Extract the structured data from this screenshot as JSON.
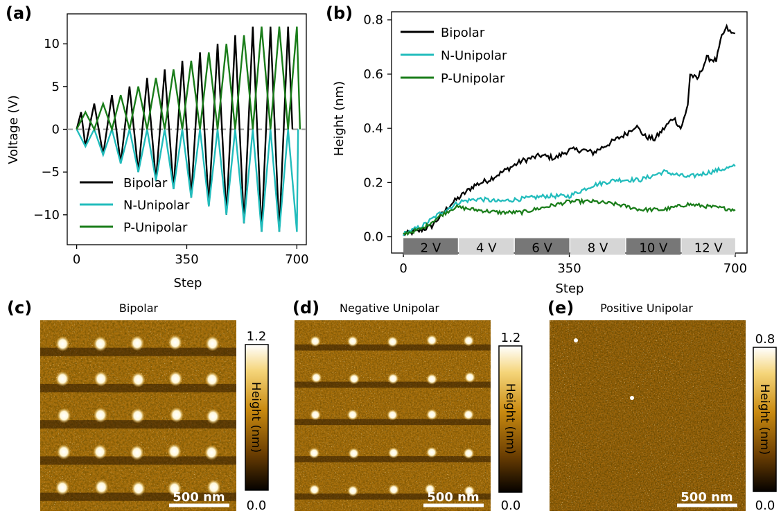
{
  "chart_data": [
    {
      "panel_label": "(a)",
      "type": "line",
      "xlabel": "Step",
      "ylabel": "Voltage (V)",
      "xlim": [
        -30,
        730
      ],
      "ylim": [
        -13.5,
        13.5
      ],
      "xticks": [
        "0",
        "350",
        "700"
      ],
      "yticks": [
        "10",
        "5",
        "0",
        "−5",
        "−10"
      ],
      "zero_line": "dashed gray",
      "legend_position": "lower-left",
      "series": [
        {
          "name": "Bipolar",
          "color": "#000000",
          "points": [
            [
              0,
              0
            ],
            [
              14,
              2
            ],
            [
              28,
              -2
            ],
            [
              56,
              3
            ],
            [
              84,
              -3
            ],
            [
              112,
              4
            ],
            [
              140,
              -4
            ],
            [
              168,
              5
            ],
            [
              196,
              -5
            ],
            [
              224,
              6
            ],
            [
              252,
              -6
            ],
            [
              280,
              7
            ],
            [
              308,
              -7
            ],
            [
              336,
              8
            ],
            [
              364,
              -8
            ],
            [
              392,
              9
            ],
            [
              420,
              -9
            ],
            [
              448,
              10
            ],
            [
              476,
              -10
            ],
            [
              504,
              11
            ],
            [
              532,
              -11
            ],
            [
              560,
              12
            ],
            [
              588,
              -12
            ],
            [
              616,
              12
            ],
            [
              644,
              -12
            ],
            [
              672,
              12
            ],
            [
              686,
              0
            ]
          ]
        },
        {
          "name": "N-Unipolar",
          "color": "#22bcbc",
          "points": [
            [
              0,
              0
            ],
            [
              28,
              -2
            ],
            [
              56,
              0
            ],
            [
              84,
              -3
            ],
            [
              112,
              0
            ],
            [
              140,
              -4
            ],
            [
              168,
              0
            ],
            [
              196,
              -5
            ],
            [
              224,
              0
            ],
            [
              252,
              -6
            ],
            [
              280,
              0
            ],
            [
              308,
              -7
            ],
            [
              336,
              0
            ],
            [
              364,
              -8
            ],
            [
              392,
              0
            ],
            [
              420,
              -9
            ],
            [
              448,
              0
            ],
            [
              476,
              -10
            ],
            [
              504,
              0
            ],
            [
              532,
              -11
            ],
            [
              560,
              0
            ],
            [
              588,
              -12
            ],
            [
              616,
              0
            ],
            [
              644,
              -12
            ],
            [
              672,
              0
            ],
            [
              700,
              -12
            ],
            [
              704,
              0
            ]
          ]
        },
        {
          "name": "P-Unipolar",
          "color": "#1a7d1a",
          "points": [
            [
              0,
              0
            ],
            [
              28,
              2
            ],
            [
              56,
              0
            ],
            [
              84,
              3
            ],
            [
              112,
              0
            ],
            [
              140,
              4
            ],
            [
              168,
              0
            ],
            [
              196,
              5
            ],
            [
              224,
              0
            ],
            [
              252,
              6
            ],
            [
              280,
              0
            ],
            [
              308,
              7
            ],
            [
              336,
              0
            ],
            [
              364,
              8
            ],
            [
              392,
              0
            ],
            [
              420,
              9
            ],
            [
              448,
              0
            ],
            [
              476,
              10
            ],
            [
              504,
              0
            ],
            [
              532,
              11
            ],
            [
              560,
              0
            ],
            [
              588,
              12
            ],
            [
              616,
              0
            ],
            [
              644,
              12
            ],
            [
              672,
              0
            ],
            [
              700,
              12
            ],
            [
              710,
              0
            ]
          ]
        }
      ]
    },
    {
      "panel_label": "(b)",
      "type": "line",
      "xlabel": "Step",
      "ylabel": "Height (nm)",
      "xlim": [
        -25,
        725
      ],
      "ylim": [
        -0.06,
        0.83
      ],
      "xticks": [
        "0",
        "350",
        "700"
      ],
      "yticks": [
        "0.8",
        "0.6",
        "0.4",
        "0.2",
        "0.0"
      ],
      "legend_position": "upper-left",
      "voltage_bands": [
        {
          "label": "2 V",
          "start": 0,
          "end": 115,
          "shade": "#777777"
        },
        {
          "label": "4 V",
          "start": 117,
          "end": 233,
          "shade": "#d6d6d6"
        },
        {
          "label": "6 V",
          "start": 235,
          "end": 350,
          "shade": "#777777"
        },
        {
          "label": "8 V",
          "start": 352,
          "end": 468,
          "shade": "#d6d6d6"
        },
        {
          "label": "10 V",
          "start": 470,
          "end": 585,
          "shade": "#777777"
        },
        {
          "label": "12 V",
          "start": 587,
          "end": 700,
          "shade": "#d6d6d6"
        }
      ],
      "series": [
        {
          "name": "Bipolar",
          "color": "#000000",
          "points": [
            [
              0,
              0.01
            ],
            [
              30,
              0.02
            ],
            [
              60,
              0.04
            ],
            [
              100,
              0.12
            ],
            [
              150,
              0.19
            ],
            [
              180,
              0.21
            ],
            [
              220,
              0.25
            ],
            [
              250,
              0.28
            ],
            [
              290,
              0.3
            ],
            [
              320,
              0.29
            ],
            [
              350,
              0.32
            ],
            [
              380,
              0.32
            ],
            [
              400,
              0.31
            ],
            [
              440,
              0.35
            ],
            [
              470,
              0.38
            ],
            [
              490,
              0.41
            ],
            [
              510,
              0.37
            ],
            [
              530,
              0.36
            ],
            [
              550,
              0.4
            ],
            [
              570,
              0.44
            ],
            [
              585,
              0.4
            ],
            [
              595,
              0.45
            ],
            [
              600,
              0.49
            ],
            [
              605,
              0.6
            ],
            [
              620,
              0.58
            ],
            [
              640,
              0.66
            ],
            [
              660,
              0.65
            ],
            [
              672,
              0.74
            ],
            [
              682,
              0.77
            ],
            [
              692,
              0.75
            ],
            [
              700,
              0.75
            ]
          ]
        },
        {
          "name": "N-Unipolar",
          "color": "#22bcbc",
          "points": [
            [
              0,
              0.01
            ],
            [
              40,
              0.04
            ],
            [
              80,
              0.09
            ],
            [
              120,
              0.13
            ],
            [
              160,
              0.14
            ],
            [
              200,
              0.13
            ],
            [
              250,
              0.14
            ],
            [
              300,
              0.15
            ],
            [
              350,
              0.15
            ],
            [
              400,
              0.19
            ],
            [
              450,
              0.21
            ],
            [
              500,
              0.21
            ],
            [
              550,
              0.24
            ],
            [
              600,
              0.22
            ],
            [
              650,
              0.24
            ],
            [
              700,
              0.26
            ]
          ]
        },
        {
          "name": "P-Unipolar",
          "color": "#1a7d1a",
          "points": [
            [
              0,
              0.01
            ],
            [
              40,
              0.03
            ],
            [
              80,
              0.08
            ],
            [
              110,
              0.11
            ],
            [
              150,
              0.1
            ],
            [
              200,
              0.09
            ],
            [
              250,
              0.09
            ],
            [
              300,
              0.11
            ],
            [
              350,
              0.13
            ],
            [
              400,
              0.13
            ],
            [
              450,
              0.12
            ],
            [
              500,
              0.1
            ],
            [
              550,
              0.1
            ],
            [
              600,
              0.12
            ],
            [
              650,
              0.11
            ],
            [
              700,
              0.1
            ]
          ]
        }
      ]
    },
    {
      "panel_label": "(c)",
      "type": "heatmap",
      "title": "Bipolar",
      "colorbar": {
        "label": "Height (nm)",
        "max": "1.2",
        "min": "0.0"
      },
      "scale_bar": "500 nm",
      "grid_rows": 5,
      "grid_cols": 5
    },
    {
      "panel_label": "(d)",
      "type": "heatmap",
      "title": "Negative  Unipolar",
      "colorbar": {
        "label": "Height (nm)",
        "max": "1.2",
        "min": "0.0"
      },
      "scale_bar": "500 nm",
      "grid_rows": 5,
      "grid_cols": 5
    },
    {
      "panel_label": "(e)",
      "type": "heatmap",
      "title": "Positive  Unipolar",
      "colorbar": {
        "label": "Height (nm)",
        "max": "0.8",
        "min": "0.0"
      },
      "scale_bar": "500 nm",
      "grid_rows": 0,
      "grid_cols": 0
    }
  ],
  "colors": {
    "afm_dark": "#2a1500",
    "afm_mid": "#b77a0a",
    "afm_bright": "#ffffff"
  }
}
